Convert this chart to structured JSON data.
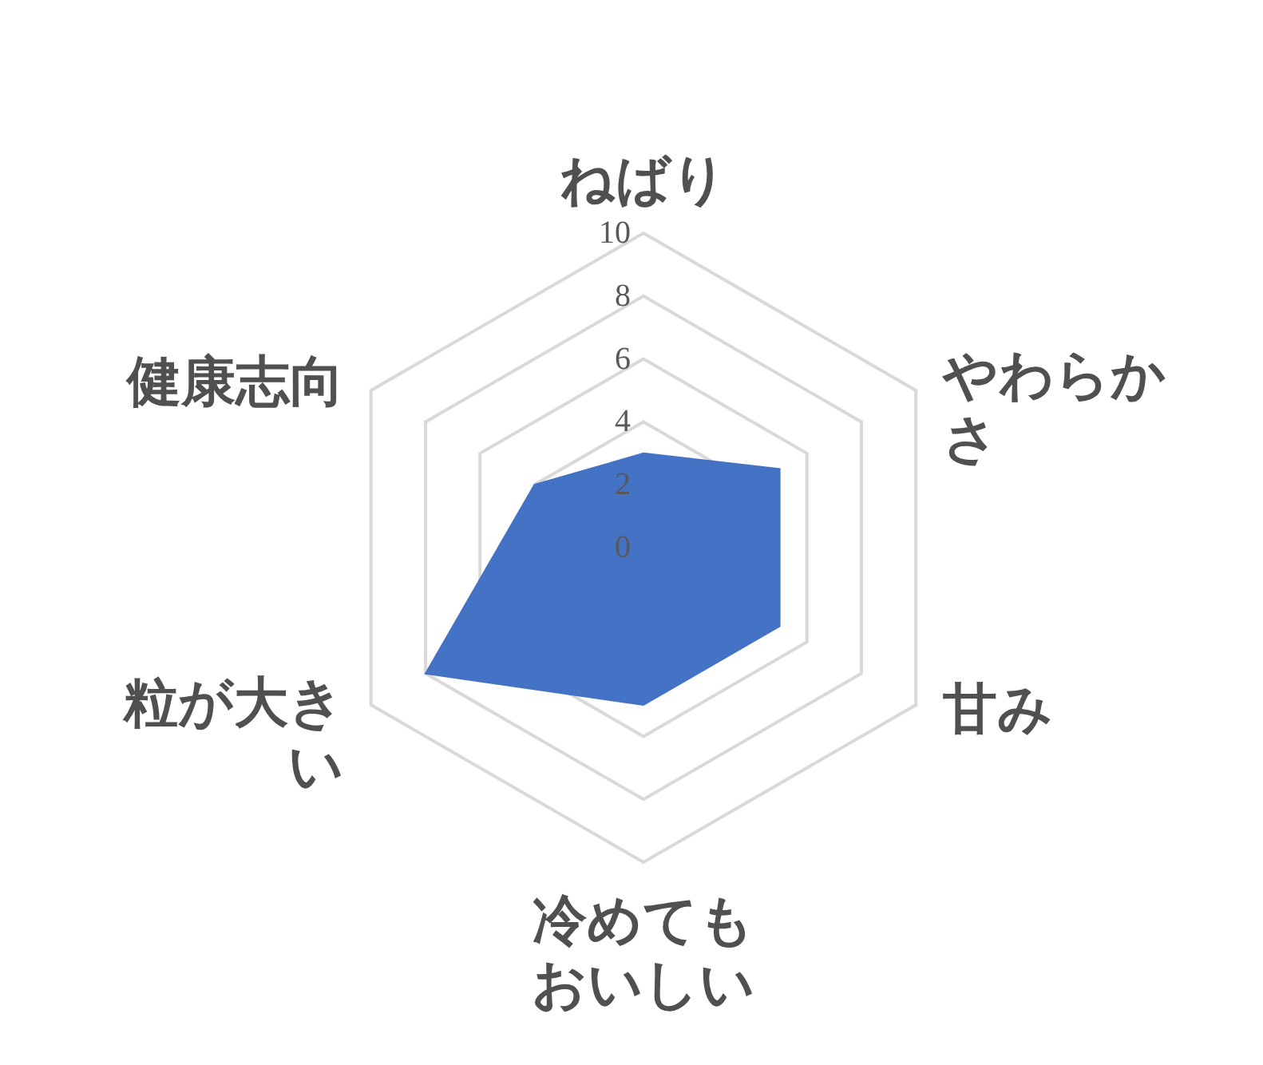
{
  "chart_data": {
    "type": "radar",
    "categories": [
      "ねばり",
      "やわらかさ",
      "甘み",
      "冷めてもおいしい",
      "粒が大きい",
      "健康志向"
    ],
    "series": [
      {
        "color": "#4472c4",
        "values": [
          3,
          5,
          5,
          5,
          8,
          4
        ]
      }
    ],
    "ylim": [
      0,
      10
    ],
    "yticks": [
      0,
      2,
      4,
      6,
      8,
      10
    ],
    "grid": true,
    "legend": false
  }
}
